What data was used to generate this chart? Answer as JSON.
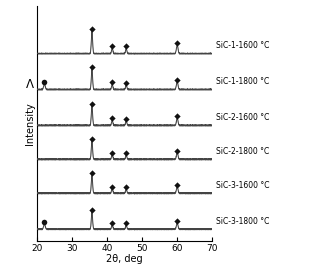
{
  "xlim": [
    20,
    70
  ],
  "xlabel": "2θ, deg",
  "ylabel": "Intensity",
  "background_color": "#ffffff",
  "series_labels": [
    "SiC-1-1600 °C",
    "SiC-1-1800 °C",
    "SiC-2-1600 °C",
    "SiC-2-1800 °C",
    "SiC-3-1600 °C",
    "SiC-3-1800 °C"
  ],
  "offsets": [
    5.0,
    4.1,
    3.2,
    2.35,
    1.5,
    0.6
  ],
  "xticks": [
    20,
    30,
    40,
    50,
    60,
    70
  ],
  "line_color": "#444444",
  "marker_color": "#111111",
  "label_fontsize": 5.5,
  "axis_fontsize": 7.0,
  "tick_fontsize": 6.5,
  "all_peaks": [
    [
      [
        35.6,
        0.55,
        0.18
      ],
      [
        41.4,
        0.14,
        0.18
      ],
      [
        45.4,
        0.13,
        0.18
      ],
      [
        60.0,
        0.22,
        0.22
      ]
    ],
    [
      [
        22.0,
        0.14,
        0.22
      ],
      [
        35.6,
        0.5,
        0.18
      ],
      [
        41.4,
        0.13,
        0.18
      ],
      [
        45.4,
        0.12,
        0.18
      ],
      [
        60.0,
        0.2,
        0.22
      ]
    ],
    [
      [
        35.6,
        0.48,
        0.18
      ],
      [
        41.4,
        0.13,
        0.18
      ],
      [
        45.4,
        0.12,
        0.18
      ],
      [
        60.0,
        0.18,
        0.22
      ]
    ],
    [
      [
        35.6,
        0.46,
        0.18
      ],
      [
        41.4,
        0.12,
        0.18
      ],
      [
        45.4,
        0.11,
        0.18
      ],
      [
        60.0,
        0.17,
        0.22
      ]
    ],
    [
      [
        35.6,
        0.44,
        0.18
      ],
      [
        41.4,
        0.12,
        0.18
      ],
      [
        45.4,
        0.11,
        0.18
      ],
      [
        60.0,
        0.16,
        0.22
      ]
    ],
    [
      [
        22.0,
        0.13,
        0.22
      ],
      [
        35.6,
        0.42,
        0.18
      ],
      [
        41.4,
        0.11,
        0.18
      ],
      [
        45.4,
        0.1,
        0.18
      ],
      [
        60.0,
        0.15,
        0.22
      ]
    ]
  ],
  "diamond_peaks_list": [
    [
      35.6,
      41.4,
      45.4,
      60.0
    ],
    [
      22.0,
      35.6,
      41.4,
      45.4,
      60.0
    ],
    [
      35.6,
      41.4,
      45.4,
      60.0
    ],
    [
      35.6,
      41.4,
      45.4,
      60.0
    ],
    [
      35.6,
      41.4,
      45.4,
      60.0
    ],
    [
      22.0,
      35.6,
      41.4,
      45.4,
      60.0
    ]
  ],
  "circle_peaks": [
    [],
    [
      22.0
    ],
    [],
    [],
    [],
    [
      22.0
    ]
  ]
}
